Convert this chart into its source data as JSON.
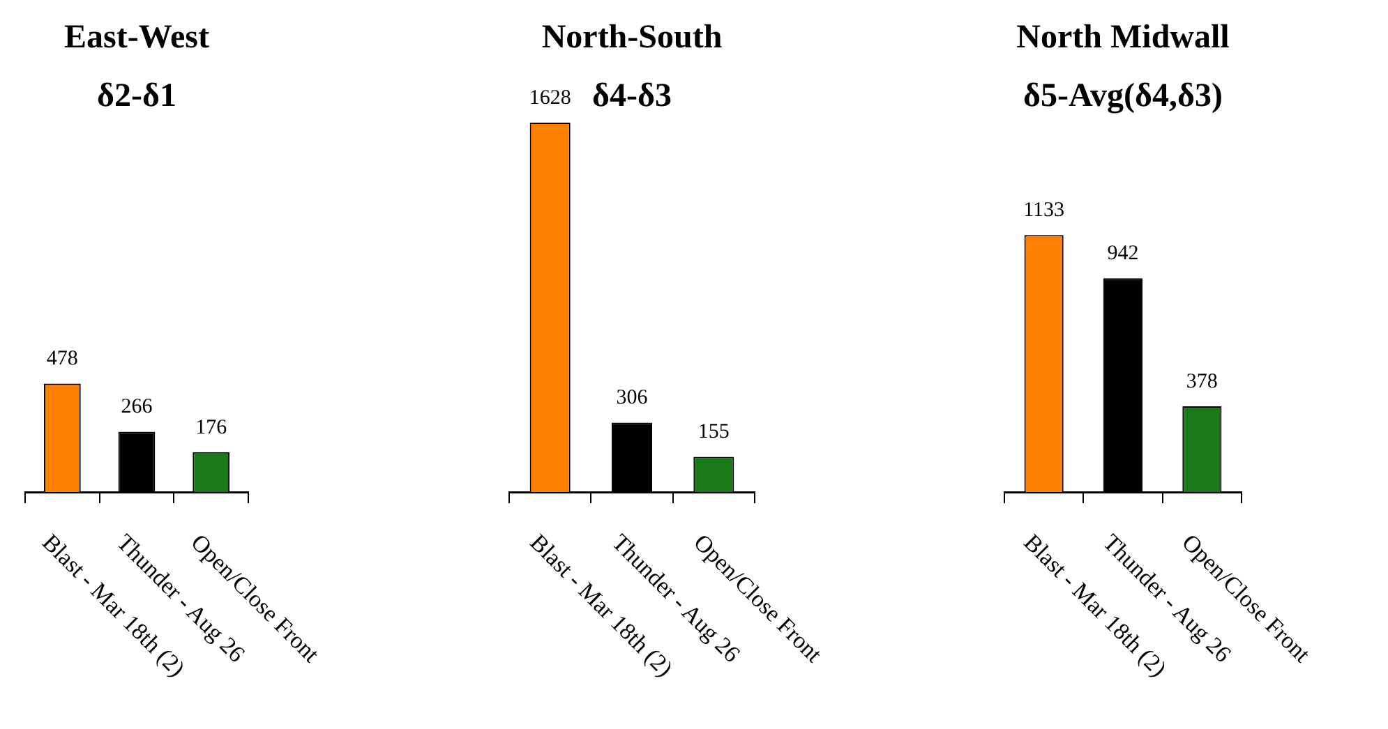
{
  "chart_data": [
    {
      "type": "bar",
      "title": "East-West",
      "subtitle": "δ2-δ1",
      "categories": [
        "Blast - Mar 18th (2)",
        "Thunder - Aug 26",
        "Open/Close Front"
      ],
      "values": [
        478,
        266,
        176
      ],
      "colors": [
        "#ff7f00",
        "#000000",
        "#1a7a1a"
      ],
      "data_labels": true,
      "tick_labels": "x",
      "grid": false,
      "legend": false
    },
    {
      "type": "bar",
      "title": "North-South",
      "subtitle": "δ4-δ3",
      "categories": [
        "Blast - Mar 18th (2)",
        "Thunder - Aug 26",
        "Open/Close Front"
      ],
      "values": [
        1628,
        306,
        155
      ],
      "colors": [
        "#ff7f00",
        "#000000",
        "#1a7a1a"
      ],
      "data_labels": true,
      "tick_labels": "x",
      "grid": false,
      "legend": false
    },
    {
      "type": "bar",
      "title": "North Midwall",
      "subtitle": "δ5-Avg(δ4,δ3)",
      "categories": [
        "Blast - Mar 18th (2)",
        "Thunder - Aug 26",
        "Open/Close Front"
      ],
      "values": [
        1133,
        942,
        378
      ],
      "colors": [
        "#ff7f00",
        "#000000",
        "#1a7a1a"
      ],
      "data_labels": true,
      "tick_labels": "x",
      "grid": false,
      "legend": false
    }
  ]
}
